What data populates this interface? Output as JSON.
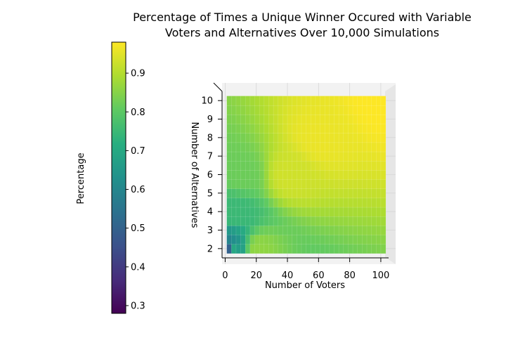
{
  "chart_data": {
    "type": "heatmap",
    "title_lines": [
      "Percentage of Times a Unique Winner Occured with Variable",
      "Voters and Alternatives Over 10,000 Simulations"
    ],
    "xlabel": "Number of Voters",
    "ylabel": "Number of Alternatives",
    "colorbar_label": "Percentage",
    "xlim": [
      -2,
      105
    ],
    "ylim": [
      1.5,
      10.5
    ],
    "x_ticks": [
      0,
      20,
      40,
      60,
      80,
      100
    ],
    "x_tick_labels": [
      "0",
      "20",
      "40",
      "60",
      "80",
      "100"
    ],
    "y_ticks": [
      2,
      3,
      4,
      5,
      6,
      7,
      8,
      9,
      10
    ],
    "y_tick_labels": [
      "2",
      "3",
      "4",
      "5",
      "6",
      "7",
      "8",
      "9",
      "10"
    ],
    "colorbar_ticks": [
      0.3,
      0.4,
      0.5,
      0.6,
      0.7,
      0.8,
      0.9
    ],
    "colorbar_tick_labels": [
      "0.3",
      "0.4",
      "0.5",
      "0.6",
      "0.7",
      "0.8",
      "0.9"
    ],
    "colorbar_range": [
      0.28,
      0.98
    ],
    "colormap": "viridis",
    "voters_range": [
      1,
      100
    ],
    "alternatives_range": [
      2,
      10
    ],
    "value_samples": [
      {
        "voters": 1,
        "alternatives": 2,
        "value": 0.5
      },
      {
        "voters": 3,
        "alternatives": 2,
        "value": 0.7
      },
      {
        "voters": 5,
        "alternatives": 4,
        "value": 0.75
      },
      {
        "voters": 10,
        "alternatives": 6,
        "value": 0.82
      },
      {
        "voters": 20,
        "alternatives": 2,
        "value": 0.86
      },
      {
        "voters": 40,
        "alternatives": 6,
        "value": 0.93
      },
      {
        "voters": 60,
        "alternatives": 8,
        "value": 0.96
      },
      {
        "voters": 100,
        "alternatives": 10,
        "value": 0.98
      }
    ]
  }
}
